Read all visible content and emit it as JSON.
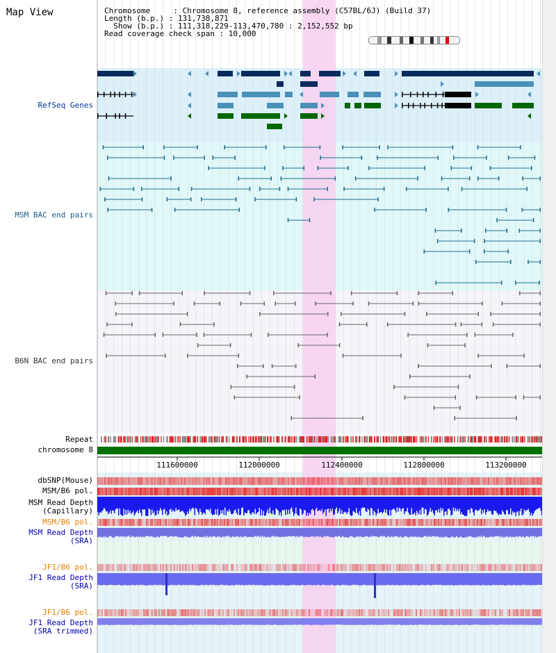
{
  "header": {
    "title": "Map View",
    "chromosome_line": "Chromosome     : Chromosome 8, reference assembly (C57BL/6J) (Build 37)",
    "length_line": "Length (b.p.) : 131,738,871",
    "show_line": "  Show (b.p.) : 111,318,229-113,470,780 : 2,152,552 bp",
    "coverage_line": "Read coverage check span : 10,000"
  },
  "tracks": {
    "refseq": "RefSeq Genes",
    "msm_bac": "MSM BAC end pairs",
    "b6n_bac": "B6N BAC end pairs",
    "repeat": "Repeat",
    "chromosome": "chromosome 8",
    "dbsnp": "dbSNP(Mouse)",
    "msm_b6_pol": "MSM/B6 pol.",
    "msm_read_depth_cap_1": "MSM Read Depth",
    "msm_read_depth_cap_2": "(Capillary)",
    "msm_b6_pol_2": "MSM/B6 pol.",
    "msm_read_depth_sra_1": "MSM Read Depth",
    "msm_read_depth_sra_2": "(SRA)",
    "jf1_b6_pol": "JF1/B6 pol.",
    "jf1_read_depth_1": "JF1 Read Depth",
    "jf1_read_depth_2": "(SRA)",
    "jf1_b6_pol_2": "JF1/B6 pol.",
    "jf1_read_depth_trim_1": "JF1 Read Depth",
    "jf1_read_depth_trim_2": "(SRA trimmed)"
  },
  "axis": {
    "ticks": [
      "111600000",
      "112000000",
      "112400000",
      "112800000",
      "113200000"
    ]
  },
  "colors": {
    "refseq_bg": "#dcf0fa",
    "msm_bg": "#e0f8f8",
    "b6n_bg": "#f4f4fa",
    "highlight": "#f8d0f0",
    "gene_dark": "#0a2a5e",
    "gene_mid": "#4a90b8",
    "gene_green": "#006600",
    "chromosome_bar": "#007000",
    "bac_msm": "#1e6e8e",
    "bac_b6n": "#666666"
  }
}
